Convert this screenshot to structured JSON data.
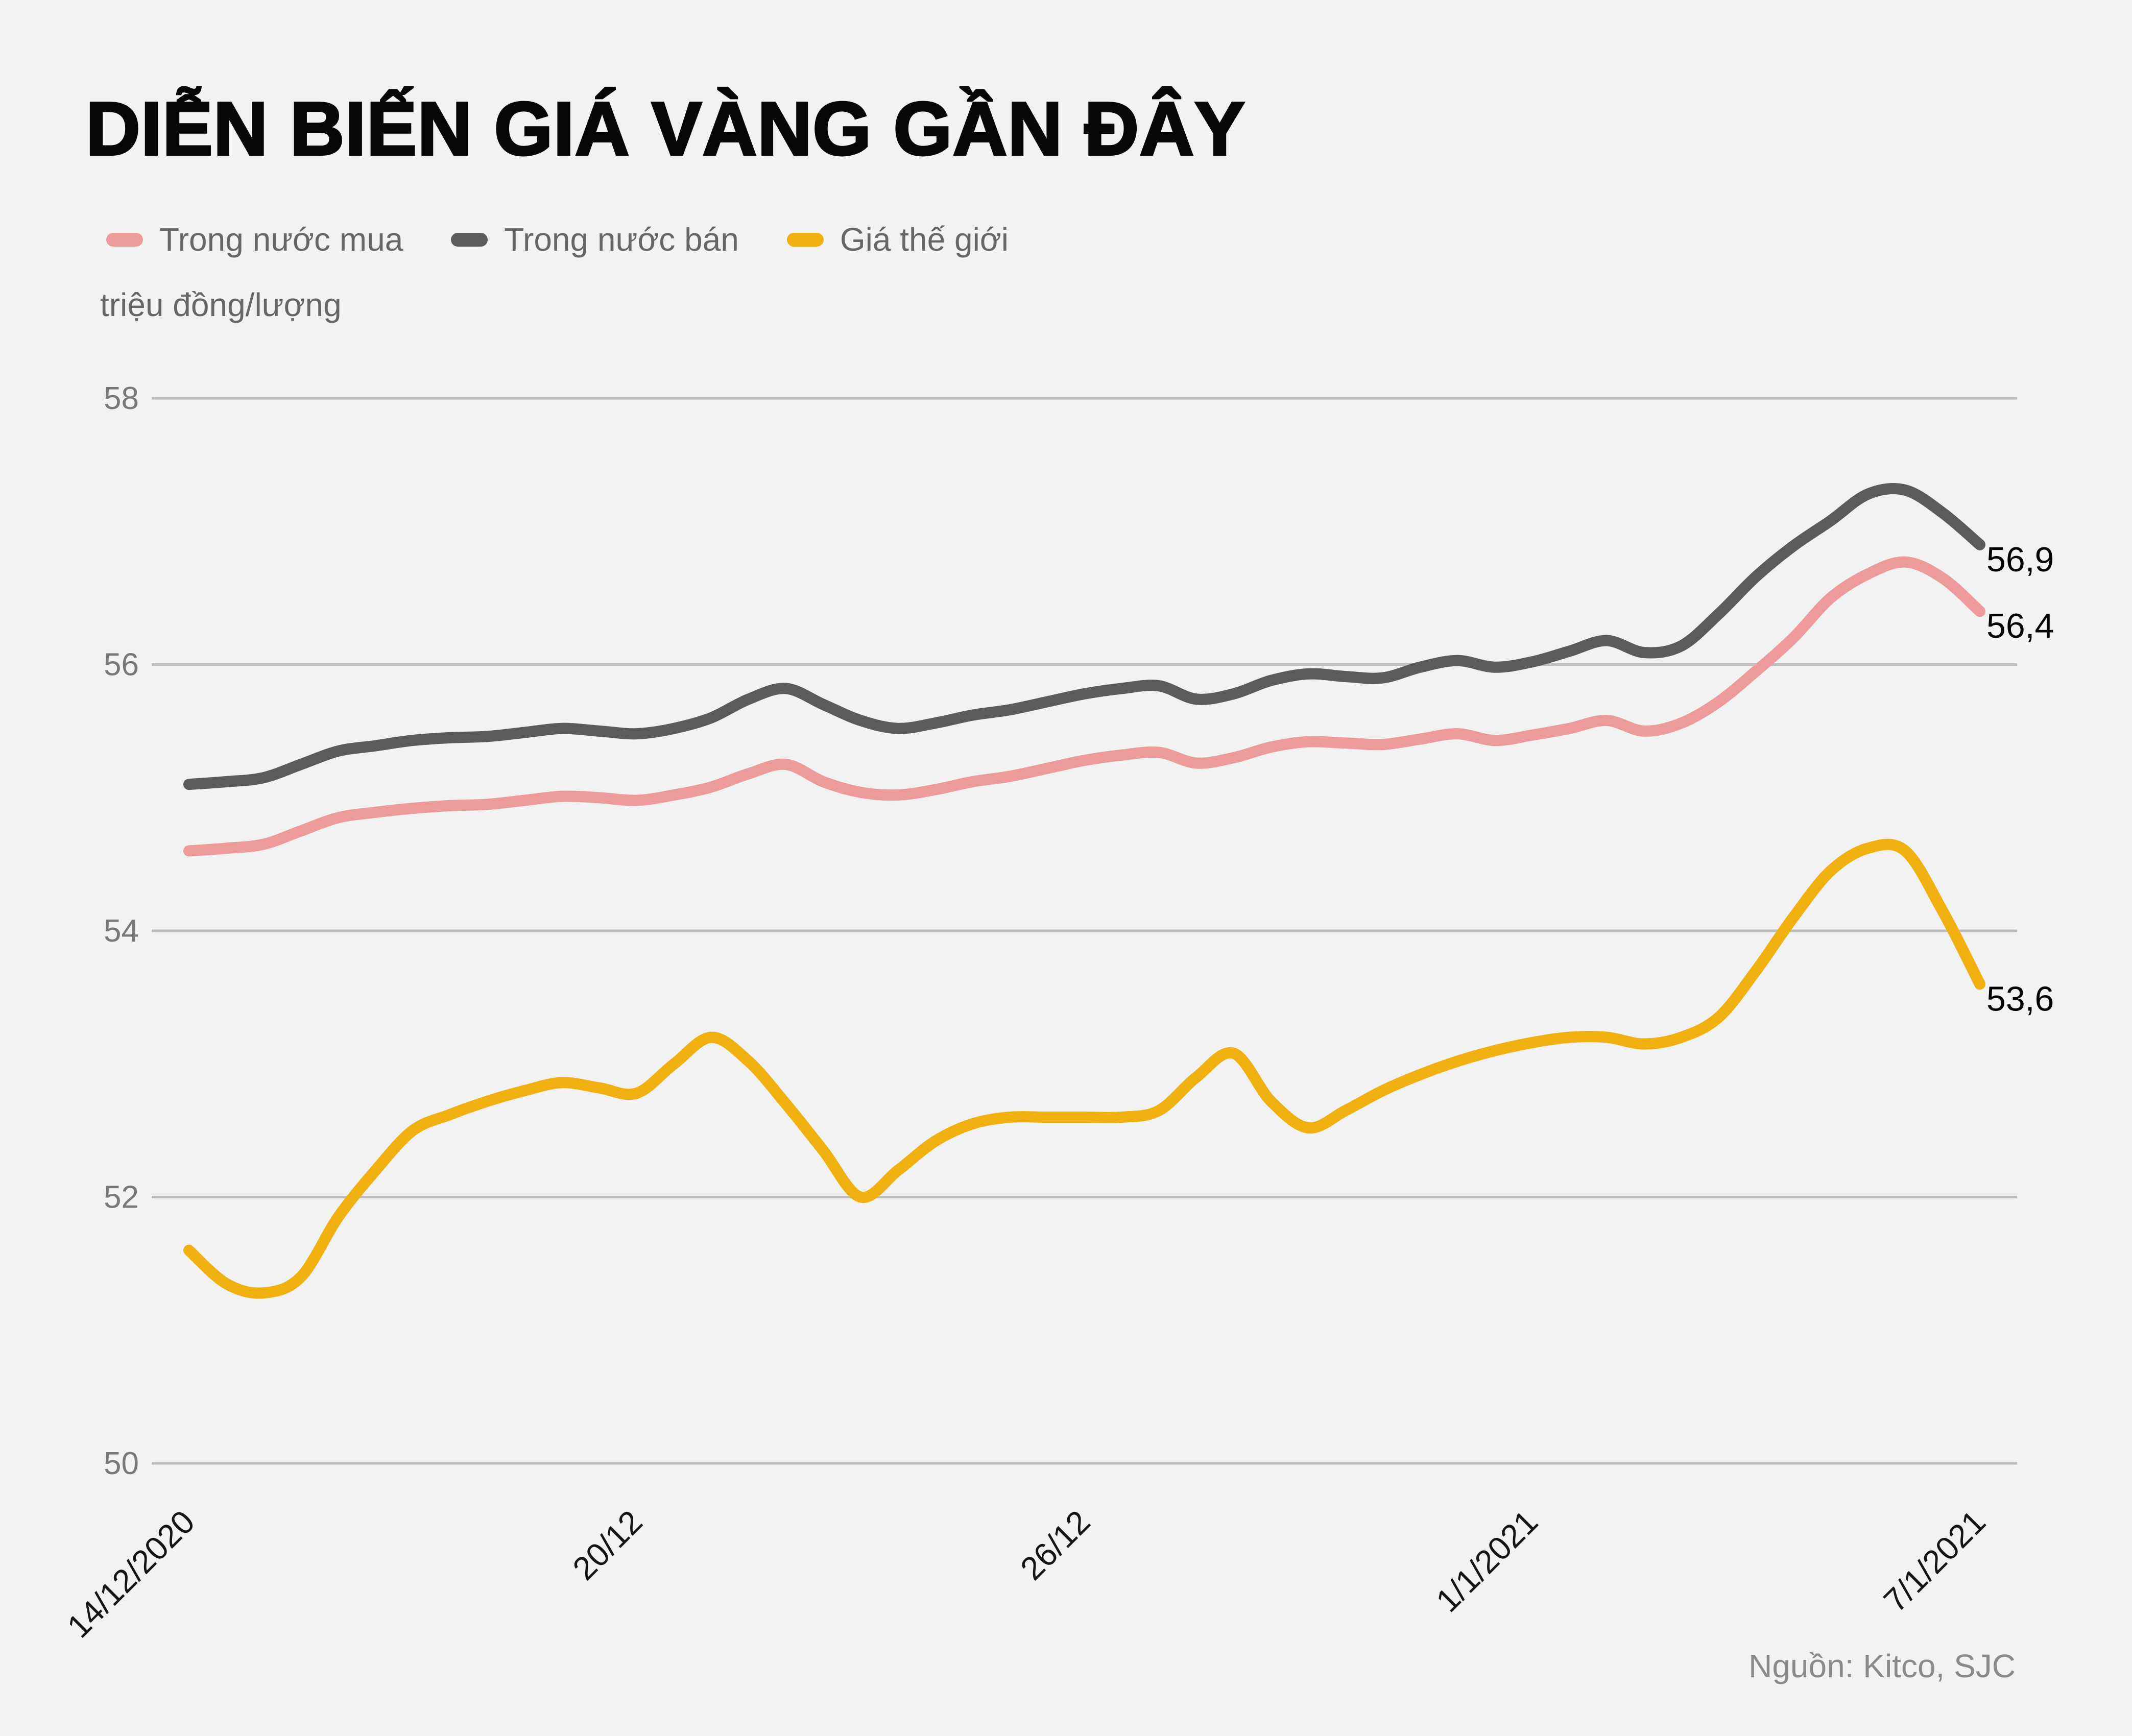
{
  "title": "DIỄN BIẾN GIÁ VÀNG GẦN ĐÂY",
  "unit_label": "triệu đồng/lượng",
  "source": "Nguồn: Kitco, SJC",
  "colors": {
    "background": "#f2f2f2",
    "gridline": "#bdbdbd",
    "axis_text": "#787878",
    "x_axis_text": "#141414",
    "end_label_text": "#000000"
  },
  "legend": [
    {
      "label": "Trong nước mua",
      "color": "#ec9a9a"
    },
    {
      "label": "Trong nước bán",
      "color": "#5a5b5d"
    },
    {
      "label": "Giá thế giới",
      "color": "#f0b00f"
    }
  ],
  "chart_data": {
    "type": "line",
    "title": "DIỄN BIẾN GIÁ VÀNG GẦN ĐÂY",
    "ylabel": "triệu đồng/lượng",
    "ylim": [
      50,
      58
    ],
    "y_ticks": [
      58,
      56,
      54,
      52,
      50
    ],
    "x_span_days": 24,
    "x_step_days": 0.5,
    "x_ticks": [
      {
        "day": 0,
        "label": "14/12/2020"
      },
      {
        "day": 6,
        "label": "20/12"
      },
      {
        "day": 12,
        "label": "26/12"
      },
      {
        "day": 18,
        "label": "1/1/2021"
      },
      {
        "day": 24,
        "label": "7/1/2021"
      }
    ],
    "grid": true,
    "legend_position": "top-left",
    "series": [
      {
        "name": "Trong nước mua",
        "color": "#ec9a9a",
        "end_label": "56,4",
        "values": [
          54.6,
          54.62,
          54.65,
          54.75,
          54.85,
          54.89,
          54.92,
          54.94,
          54.95,
          54.98,
          55.01,
          55.0,
          54.98,
          55.02,
          55.08,
          55.18,
          55.25,
          55.12,
          55.04,
          55.02,
          55.06,
          55.12,
          55.16,
          55.22,
          55.28,
          55.32,
          55.34,
          55.26,
          55.3,
          55.38,
          55.42,
          55.41,
          55.4,
          55.44,
          55.48,
          55.43,
          55.47,
          55.52,
          55.58,
          55.5,
          55.56,
          55.72,
          55.95,
          56.2,
          56.5,
          56.68,
          56.77,
          56.65,
          56.4
        ]
      },
      {
        "name": "Trong nước bán",
        "color": "#5a5b5d",
        "end_label": "56,9",
        "values": [
          55.1,
          55.12,
          55.15,
          55.25,
          55.35,
          55.39,
          55.43,
          55.45,
          55.46,
          55.49,
          55.52,
          55.5,
          55.48,
          55.52,
          55.6,
          55.74,
          55.82,
          55.7,
          55.58,
          55.52,
          55.56,
          55.62,
          55.66,
          55.72,
          55.78,
          55.82,
          55.84,
          55.74,
          55.78,
          55.88,
          55.93,
          55.91,
          55.9,
          55.98,
          56.03,
          55.98,
          56.02,
          56.1,
          56.18,
          56.09,
          56.14,
          56.38,
          56.66,
          56.89,
          57.08,
          57.28,
          57.31,
          57.14,
          56.9
        ]
      },
      {
        "name": "Giá thế giới",
        "color": "#f0b00f",
        "end_label": "53,6",
        "values": [
          51.6,
          51.35,
          51.28,
          51.4,
          51.85,
          52.2,
          52.5,
          52.62,
          52.72,
          52.8,
          52.86,
          52.82,
          52.78,
          53.0,
          53.2,
          53.02,
          52.7,
          52.35,
          52.0,
          52.2,
          52.42,
          52.55,
          52.6,
          52.6,
          52.6,
          52.6,
          52.65,
          52.9,
          53.08,
          52.72,
          52.52,
          52.65,
          52.8,
          52.92,
          53.02,
          53.1,
          53.16,
          53.2,
          53.2,
          53.15,
          53.2,
          53.35,
          53.7,
          54.1,
          54.45,
          54.62,
          54.6,
          54.15,
          53.6
        ]
      }
    ]
  }
}
